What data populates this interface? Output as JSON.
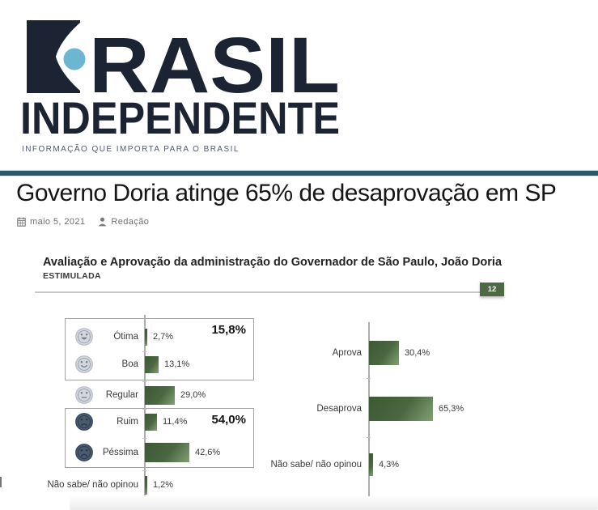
{
  "brand": {
    "name_part1": "RASIL",
    "name_part2": "INDEPENDENTE",
    "tagline": "INFORMAÇÃO QUE IMPORTA PARA O BRASIL",
    "colors": {
      "navy": "#1c2433",
      "dot_blue": "#6cb6d1",
      "teal_bar": "#2c5963"
    }
  },
  "article": {
    "title": "Governo Doria atinge 65% de desaprovação em SP",
    "date": "maio 5, 2021",
    "author": "Redação"
  },
  "chart_data": {
    "type": "bar",
    "orientation": "horizontal",
    "title": "Avaliação e Aprovação da administração do Governador de São Paulo, João Doria",
    "subtitle": "ESTIMULADA",
    "slide_badge": "12",
    "bar_color": "#4a6741",
    "xlim": [
      0,
      100
    ],
    "panels": [
      {
        "id": "avaliacao",
        "categories": [
          "Ótima",
          "Boa",
          "Regular",
          "Ruim",
          "Péssima",
          "Não sabe/ não opinou"
        ],
        "values": [
          2.7,
          13.1,
          29.0,
          11.4,
          42.6,
          1.2
        ],
        "labels": [
          "2,7%",
          "13,1%",
          "29,0%",
          "11,4%",
          "42,6%",
          "1,2%"
        ],
        "icons": [
          "face-very-happy",
          "face-happy",
          "face-neutral",
          "face-sad",
          "face-very-sad",
          null
        ],
        "groups": [
          {
            "label": "15,8%",
            "from": 0,
            "to": 1
          },
          {
            "label": "54,0%",
            "from": 3,
            "to": 4
          }
        ]
      },
      {
        "id": "aprovacao",
        "categories": [
          "Aprova",
          "Desaprova",
          "Não sabe/ não opinou"
        ],
        "values": [
          30.4,
          65.3,
          4.3
        ],
        "labels": [
          "30,4%",
          "65,3%",
          "4,3%"
        ],
        "icons": [
          null,
          null,
          null
        ],
        "groups": []
      }
    ]
  }
}
